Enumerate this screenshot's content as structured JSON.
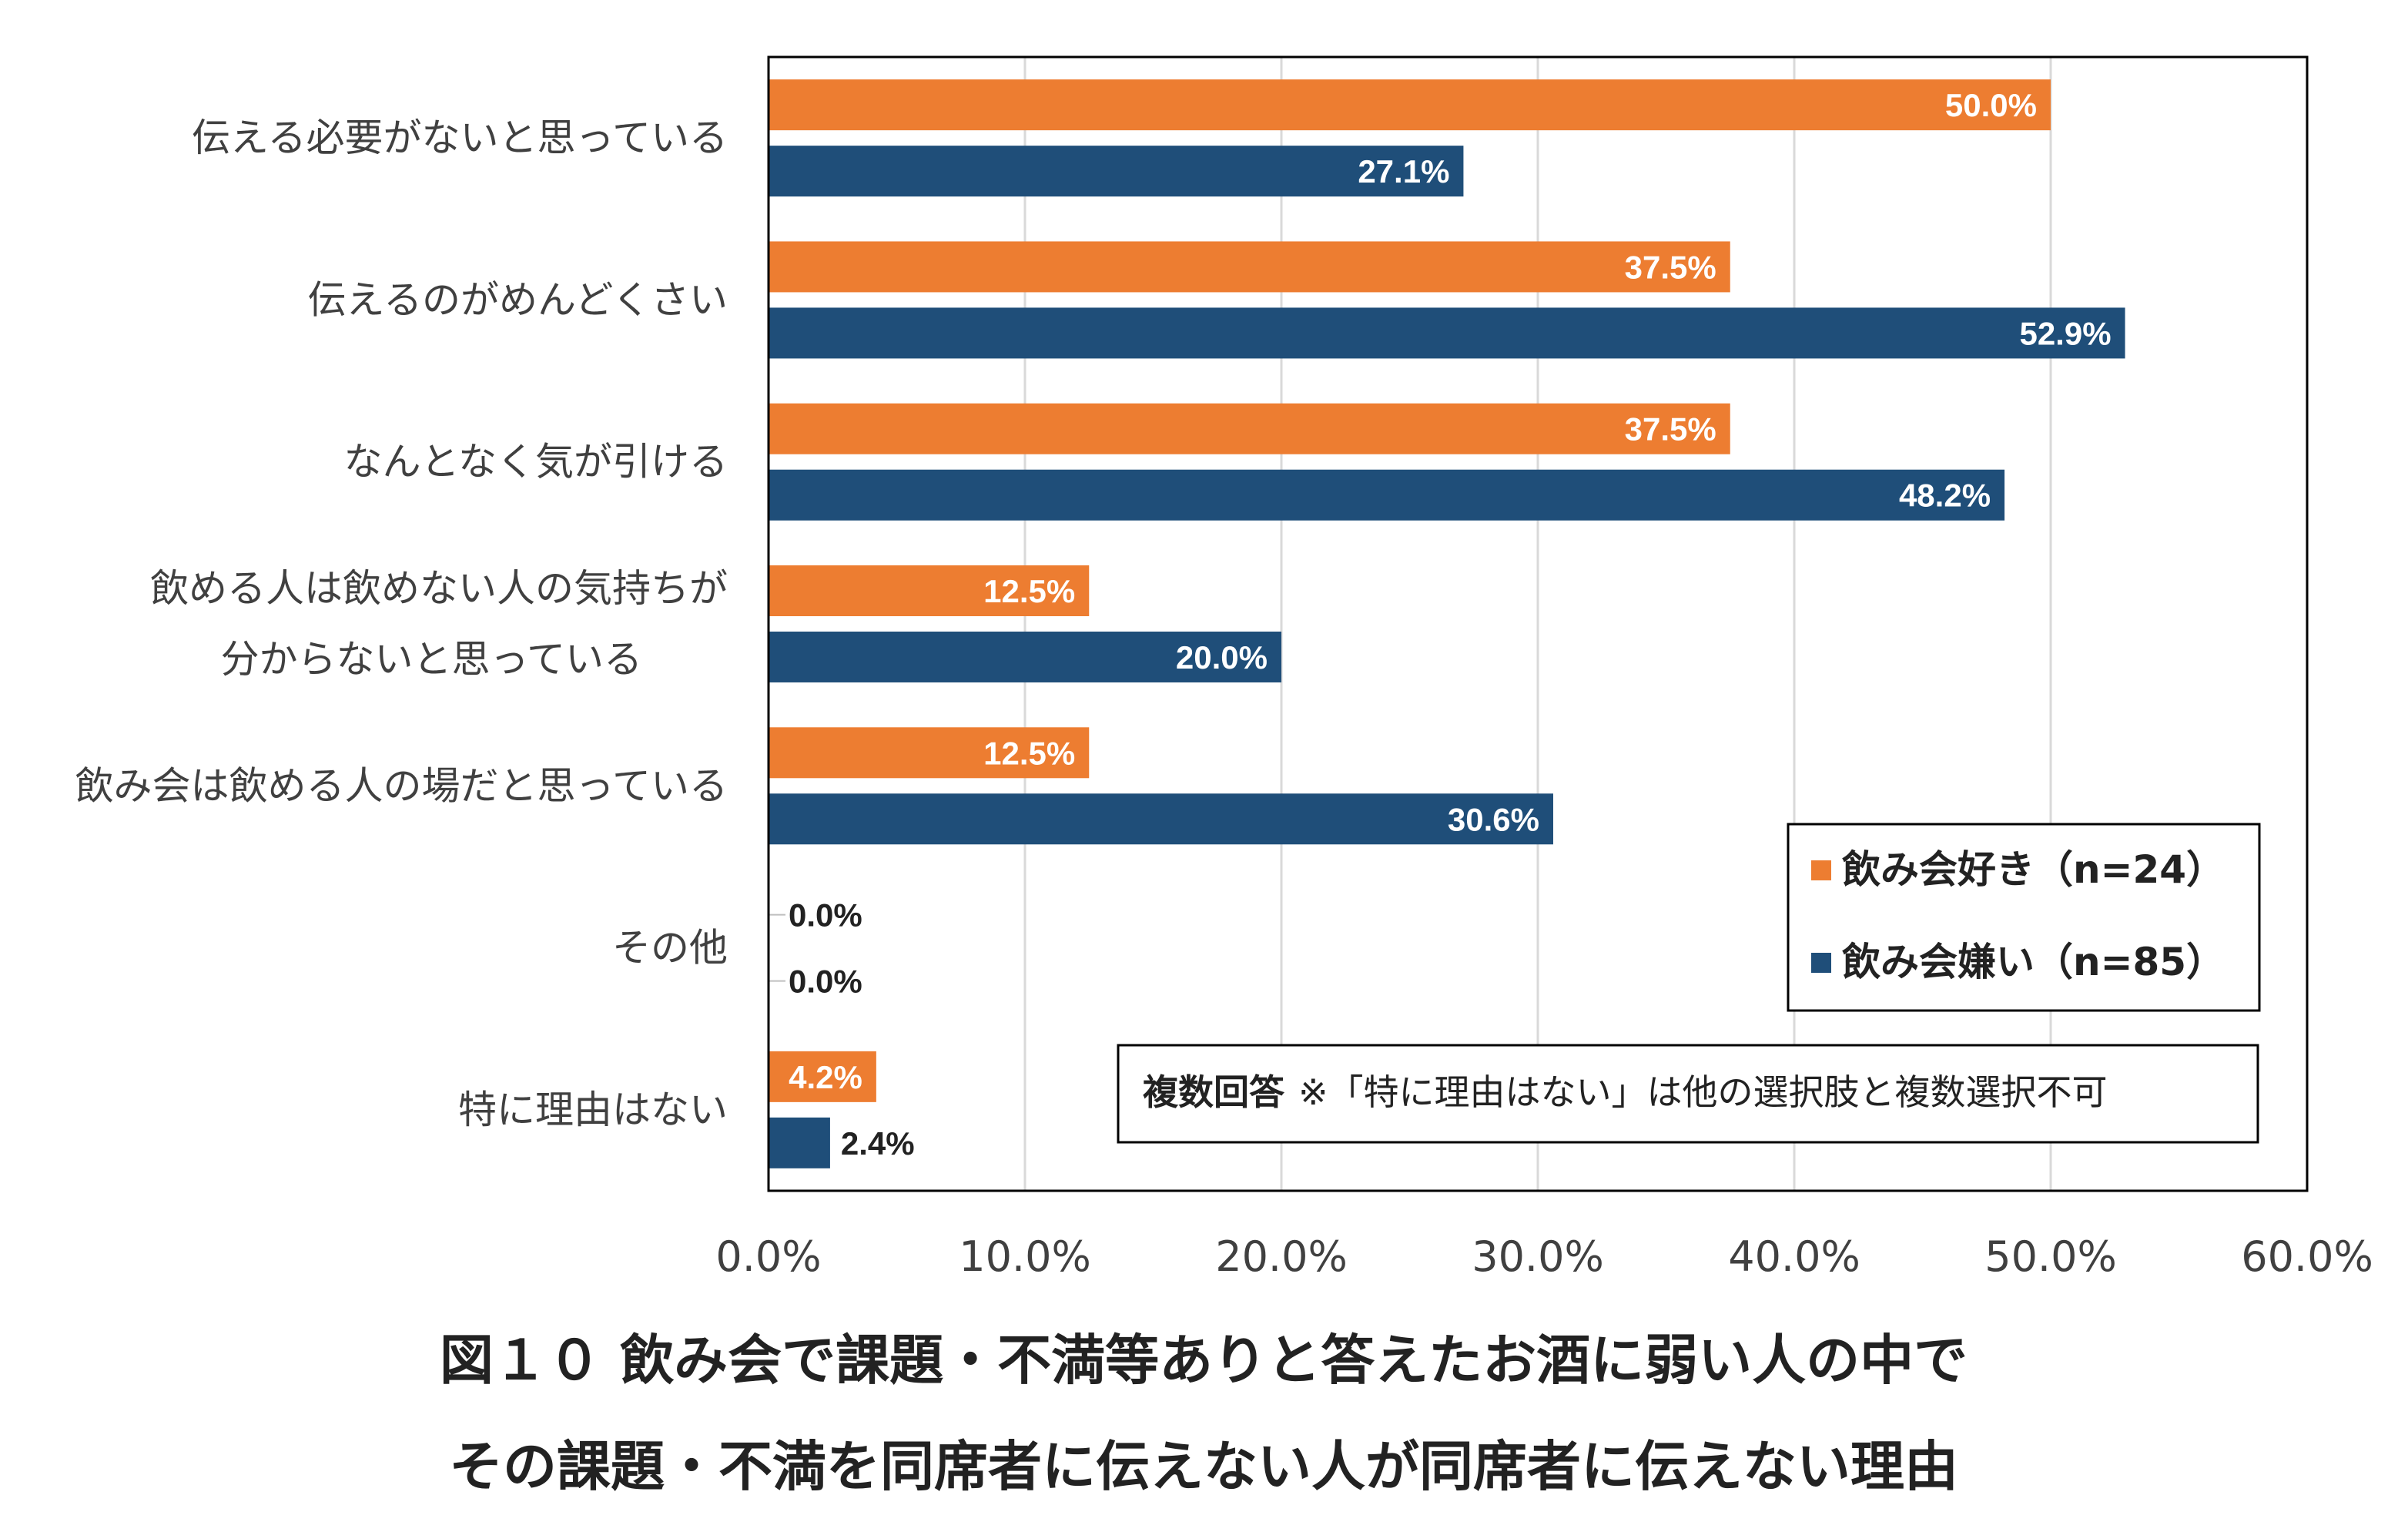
{
  "chart_data": {
    "type": "bar",
    "orientation": "horizontal",
    "categories": [
      [
        "伝える必要がないと思っている"
      ],
      [
        "伝えるのがめんどくさい"
      ],
      [
        "なんとなく気が引ける"
      ],
      [
        "飲める人は飲めない人の気持ちが",
        "分からないと思っている"
      ],
      [
        "飲み会は飲める人の場だと思っている"
      ],
      [
        "その他"
      ],
      [
        "特に理由はない"
      ]
    ],
    "series": [
      {
        "name": "飲み会好き（n=24）",
        "color": "#ED7D31",
        "values": [
          50.0,
          37.5,
          37.5,
          12.5,
          12.5,
          0.0,
          4.2
        ],
        "labels": [
          "50.0%",
          "37.5%",
          "37.5%",
          "12.5%",
          "12.5%",
          "0.0%",
          "4.2%"
        ]
      },
      {
        "name": "飲み会嫌い（n=85）",
        "color": "#1F4E79",
        "values": [
          27.1,
          52.9,
          48.2,
          20.0,
          30.6,
          0.0,
          2.4
        ],
        "labels": [
          "27.1%",
          "52.9%",
          "48.2%",
          "20.0%",
          "30.6%",
          "0.0%",
          "2.4%"
        ]
      }
    ],
    "xlim": [
      0,
      60
    ],
    "xticks": [
      0,
      10,
      20,
      30,
      40,
      50,
      60
    ],
    "xtick_labels": [
      "0.0%",
      "10.0%",
      "20.0%",
      "30.0%",
      "40.0%",
      "50.0%",
      "60.0%"
    ],
    "grid": true,
    "legend": {
      "position": "bottom-right",
      "entries": [
        "飲み会好き（n=24）",
        "飲み会嫌い（n=85）"
      ]
    },
    "note": {
      "bold": "複数回答",
      "text": "※「特に理由はない」は他の選択肢と複数選択不可"
    },
    "title": [
      "図１０ 飲み会で課題・不満等ありと答えたお酒に弱い人の中で",
      "その課題・不満を同席者に伝えない人が同席者に伝えない理由"
    ]
  }
}
